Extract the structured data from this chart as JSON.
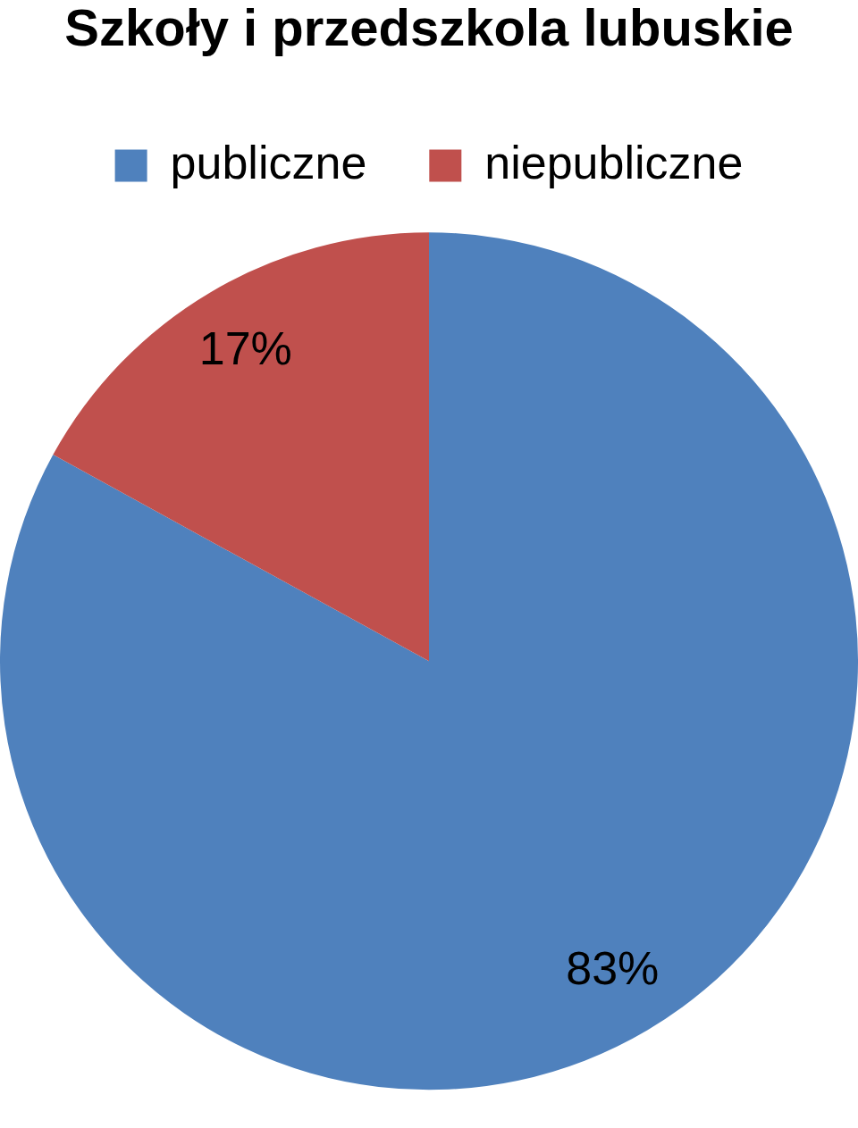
{
  "chart_data": {
    "type": "pie",
    "title": "Szkoły i przedszkola lubuskie",
    "categories": [
      "publiczne",
      "niepubliczne"
    ],
    "values": [
      83,
      17
    ],
    "colors": [
      "#4f81bd",
      "#c0504d"
    ],
    "value_labels": [
      "83%",
      "17%"
    ],
    "legend": "top"
  }
}
